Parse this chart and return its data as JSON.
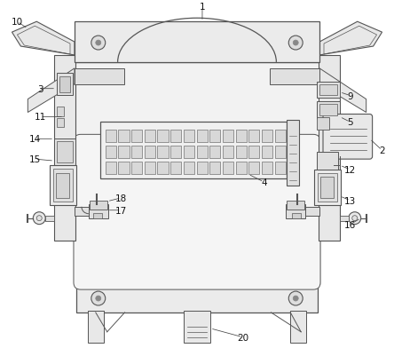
{
  "bg_color": "#ffffff",
  "lc": "#555555",
  "lc_dark": "#333333",
  "fill_body": "#f0f0f0",
  "fill_light": "#e8e8e8",
  "fill_mid": "#d8d8d8",
  "fill_dark": "#c8c8c8"
}
